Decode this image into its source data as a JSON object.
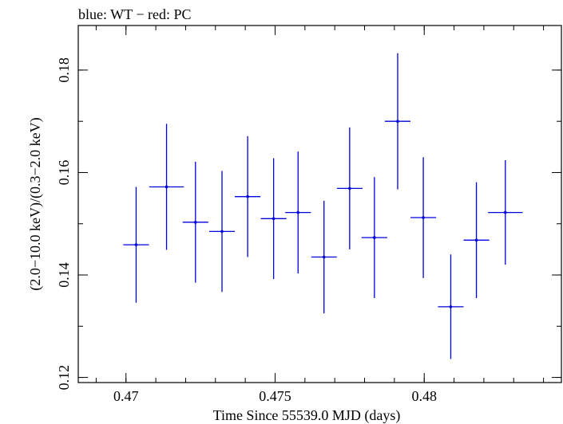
{
  "chart_data": {
    "type": "scatter",
    "title": "blue: WT − red: PC",
    "xlabel": "Time Since 55539.0 MJD (days)",
    "ylabel": "(2.0−10.0 keV)/(0.3−2.0 keV)",
    "xlim": [
      0.4684,
      0.4846
    ],
    "ylim": [
      0.119,
      0.1887
    ],
    "x_ticks": [
      0.47,
      0.475,
      0.48
    ],
    "x_tick_labels": [
      "0.47",
      "0.475",
      "0.48"
    ],
    "y_ticks": [
      0.12,
      0.14,
      0.16,
      0.18
    ],
    "y_tick_labels": [
      "0.12",
      "0.14",
      "0.16",
      "0.18"
    ],
    "grid": false,
    "series": [
      {
        "color": "#0000dd",
        "points": [
          {
            "x": 0.47034,
            "y": 0.1459,
            "xerr": 0.00043,
            "yerr": 0.0113
          },
          {
            "x": 0.47136,
            "y": 0.1572,
            "xerr": 0.00058,
            "yerr": 0.0123
          },
          {
            "x": 0.47233,
            "y": 0.1503,
            "xerr": 0.00043,
            "yerr": 0.0118
          },
          {
            "x": 0.47322,
            "y": 0.1485,
            "xerr": 0.00043,
            "yerr": 0.0118
          },
          {
            "x": 0.47408,
            "y": 0.1553,
            "xerr": 0.00043,
            "yerr": 0.0118
          },
          {
            "x": 0.47495,
            "y": 0.151,
            "xerr": 0.00043,
            "yerr": 0.0118
          },
          {
            "x": 0.47577,
            "y": 0.1522,
            "xerr": 0.00043,
            "yerr": 0.0119
          },
          {
            "x": 0.47664,
            "y": 0.1435,
            "xerr": 0.00043,
            "yerr": 0.011
          },
          {
            "x": 0.4775,
            "y": 0.1569,
            "xerr": 0.00043,
            "yerr": 0.0119
          },
          {
            "x": 0.47833,
            "y": 0.1473,
            "xerr": 0.00043,
            "yerr": 0.0118
          },
          {
            "x": 0.47911,
            "y": 0.17,
            "xerr": 0.00043,
            "yerr": 0.0133
          },
          {
            "x": 0.47997,
            "y": 0.1512,
            "xerr": 0.00043,
            "yerr": 0.0118
          },
          {
            "x": 0.48089,
            "y": 0.1338,
            "xerr": 0.00043,
            "yerr": 0.0102
          },
          {
            "x": 0.48175,
            "y": 0.1468,
            "xerr": 0.00043,
            "yerr": 0.0113
          },
          {
            "x": 0.48272,
            "y": 0.1522,
            "xerr": 0.00058,
            "yerr": 0.0102
          }
        ]
      }
    ]
  }
}
